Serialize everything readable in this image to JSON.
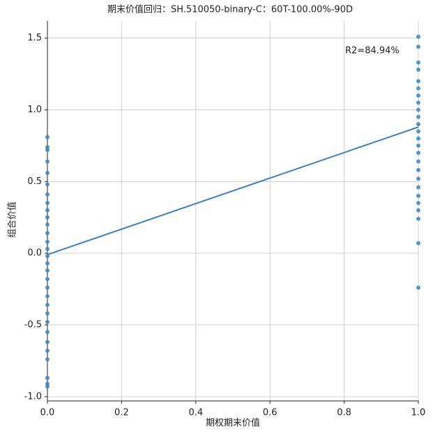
{
  "chart_data": {
    "type": "scatter",
    "title": "期末价值回归：SH.510050-binary-C：60T-100.00%-90D",
    "x_label": "期权期末价值",
    "y_label": "组合价值",
    "annotation": "R2=84.94%",
    "color": "#3a85c0",
    "grid": true,
    "x": [
      0,
      0,
      0,
      0,
      0,
      0,
      0,
      0,
      0,
      0,
      0,
      0,
      0,
      0,
      0,
      0,
      0,
      0,
      0,
      0,
      0,
      0,
      0,
      0,
      0,
      0,
      0,
      0,
      0,
      0,
      1,
      1,
      1,
      1,
      1,
      1,
      1,
      1,
      1,
      1,
      1,
      1,
      1,
      1,
      1,
      1,
      1,
      1,
      1,
      1,
      1,
      1,
      1,
      1,
      1
    ],
    "y": [
      0.81,
      0.74,
      0.72,
      0.64,
      0.56,
      0.48,
      0.41,
      0.35,
      0.3,
      0.25,
      0.2,
      0.14,
      0.08,
      0.03,
      -0.02,
      -0.07,
      -0.12,
      -0.18,
      -0.24,
      -0.3,
      -0.36,
      -0.42,
      -0.48,
      -0.55,
      -0.62,
      -0.68,
      -0.74,
      -0.87,
      -0.91,
      -0.93,
      1.51,
      1.44,
      1.33,
      1.28,
      1.2,
      1.15,
      1.1,
      1.05,
      1.0,
      0.95,
      0.9,
      0.85,
      0.8,
      0.75,
      0.7,
      0.64,
      0.58,
      0.52,
      0.46,
      0.4,
      0.35,
      0.3,
      0.24,
      0.07,
      -0.24
    ],
    "fit": {
      "color": "#3b7fb8",
      "x": [
        0,
        1
      ],
      "y": [
        -0.01,
        0.88
      ]
    },
    "xlim": [
      0,
      1
    ],
    "ylim": [
      -1.03,
      1.62
    ],
    "xticks": [
      {
        "value": 0,
        "label": "0.0"
      },
      0.2,
      0.4,
      0.6,
      0.8,
      {
        "value": 1,
        "label": "1.0"
      }
    ],
    "yticks": [
      {
        "value": -1,
        "label": "-1.0"
      },
      -0.5,
      {
        "value": 0,
        "label": "0.0"
      },
      0.5,
      {
        "value": 1,
        "label": "1.0"
      },
      1.5
    ]
  }
}
